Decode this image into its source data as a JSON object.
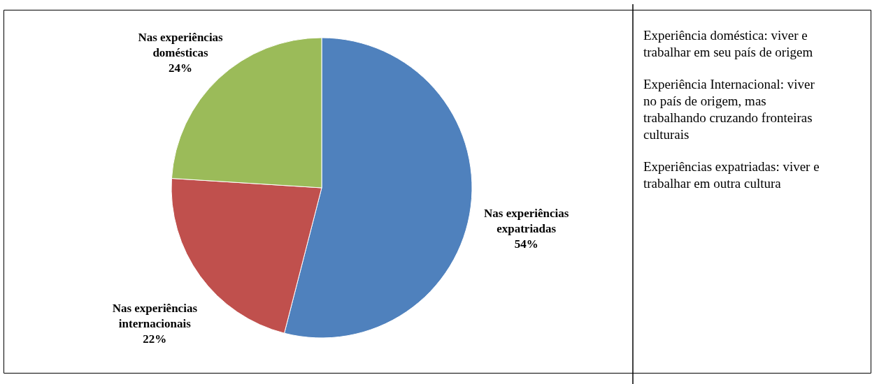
{
  "chart_data": {
    "type": "pie",
    "categories": [
      "Nas experiências expatriadas",
      "Nas experiências internacionais",
      "Nas experiências domésticas"
    ],
    "values": [
      54,
      22,
      24
    ],
    "colors": [
      "#4f81bd",
      "#c0504d",
      "#9bbb59"
    ],
    "value_labels": [
      "54%",
      "22%",
      "24%"
    ],
    "legend": false,
    "annotations": [
      "Experiência doméstica: viver e trabalhar em seu país de origem",
      "Experiência Internacional: viver no país de origem, mas trabalhando cruzando fronteiras culturais",
      "Experiências expatriadas: viver e trabalhar em outra cultura"
    ]
  }
}
